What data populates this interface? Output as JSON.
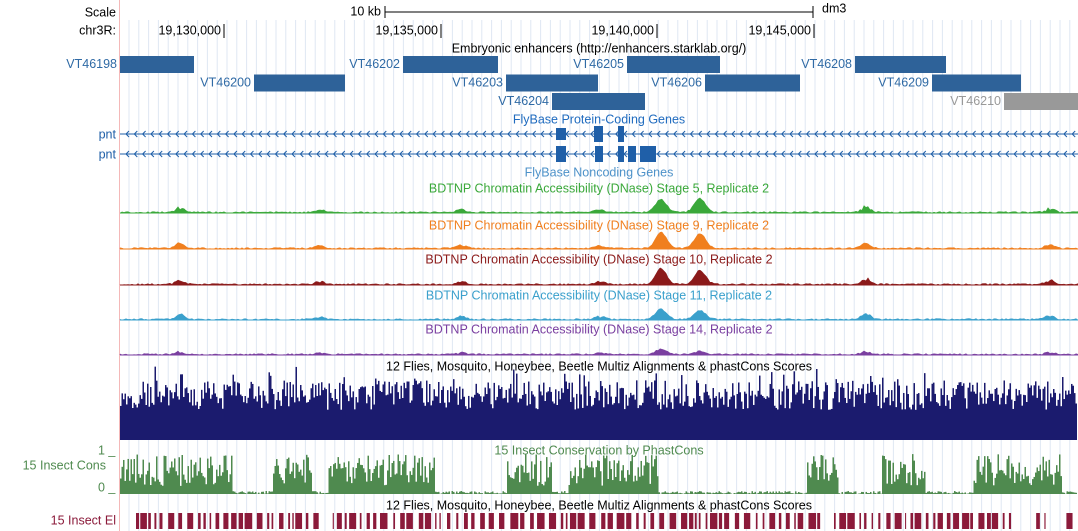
{
  "ruler": {
    "scale_label": "Scale",
    "scale_bar": "10 kb",
    "assembly": "dm3",
    "chrom": "chr3R:",
    "positions": [
      "19,130,000",
      "19,135,000",
      "19,140,000",
      "19,145,000"
    ]
  },
  "enhancers": {
    "title": "Embryonic enhancers (http://enhancers.starklab.org/)",
    "features": [
      "VT46198",
      "VT46200",
      "VT46202",
      "VT46203",
      "VT46204",
      "VT46205",
      "VT46206",
      "VT46208",
      "VT46209",
      "VT46210"
    ]
  },
  "genes": {
    "title": "FlyBase Protein-Coding Genes",
    "names": [
      "pnt",
      "pnt"
    ]
  },
  "noncoding": {
    "title": "FlyBase Noncoding Genes"
  },
  "dnase": [
    "BDTNP Chromatin Accessibility (DNase) Stage 5, Replicate 2",
    "BDTNP Chromatin Accessibility (DNase) Stage 9, Replicate 2",
    "BDTNP Chromatin Accessibility (DNase) Stage 10, Replicate 2",
    "BDTNP Chromatin Accessibility (DNase) Stage 11, Replicate 2",
    "BDTNP Chromatin Accessibility (DNase) Stage 14, Replicate 2"
  ],
  "multiz": {
    "title": "12 Flies, Mosquito, Honeybee, Beetle Multiz Alignments & phastCons Scores"
  },
  "phastcons": {
    "title": "15 Insect Conservation by PhastCons",
    "label": "15 Insect Cons",
    "max": "1 _",
    "min": "0 _"
  },
  "multiz2": {
    "title": "12 Flies, Mosquito, Honeybee, Beetle Multiz Alignments & phastCons Scores"
  },
  "elements": {
    "label": "15 Insect El"
  }
}
